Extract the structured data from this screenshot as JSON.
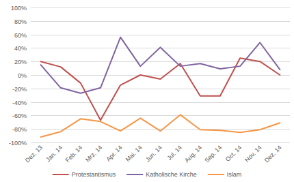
{
  "chart_data": {
    "type": "line",
    "categories": [
      "Dez. 13",
      "Jan. 14",
      "Feb. 14",
      "Mrz. 14",
      "Apr. 14",
      "Mai. 14",
      "Jun. 14",
      "Jul. 14",
      "Aug. 14",
      "Sep. 14",
      "Oct. 14",
      "Nov. 14",
      "Dez. 14"
    ],
    "series": [
      {
        "name": "Protestantismus",
        "color": "#c0504d",
        "values": [
          20,
          12,
          -12,
          -67,
          -15,
          0,
          -6,
          17,
          -31,
          -31,
          25,
          20,
          0
        ]
      },
      {
        "name": "Katholische Kirche",
        "color": "#8064a2",
        "values": [
          15,
          -19,
          -27,
          -19,
          56,
          13,
          41,
          13,
          17,
          9,
          13,
          48,
          8
        ]
      },
      {
        "name": "Islam",
        "color": "#f79646",
        "values": [
          -92,
          -84,
          -65,
          -69,
          -83,
          -64,
          -83,
          -59,
          -81,
          -82,
          -85,
          -81,
          -71
        ]
      }
    ],
    "ylim": [
      -100,
      100
    ],
    "yticks": [
      {
        "value": -100,
        "label": "-100%"
      },
      {
        "value": -80,
        "label": "-80%"
      },
      {
        "value": -60,
        "label": "-60%"
      },
      {
        "value": -40,
        "label": "-40%"
      },
      {
        "value": -20,
        "label": "-20%"
      },
      {
        "value": 0,
        "label": "0%"
      },
      {
        "value": 20,
        "label": "20%"
      },
      {
        "value": 40,
        "label": "40%"
      },
      {
        "value": 60,
        "label": "60%"
      },
      {
        "value": 80,
        "label": "80%"
      },
      {
        "value": 100,
        "label": "100%"
      }
    ],
    "grid": true,
    "legend": "bottom"
  }
}
